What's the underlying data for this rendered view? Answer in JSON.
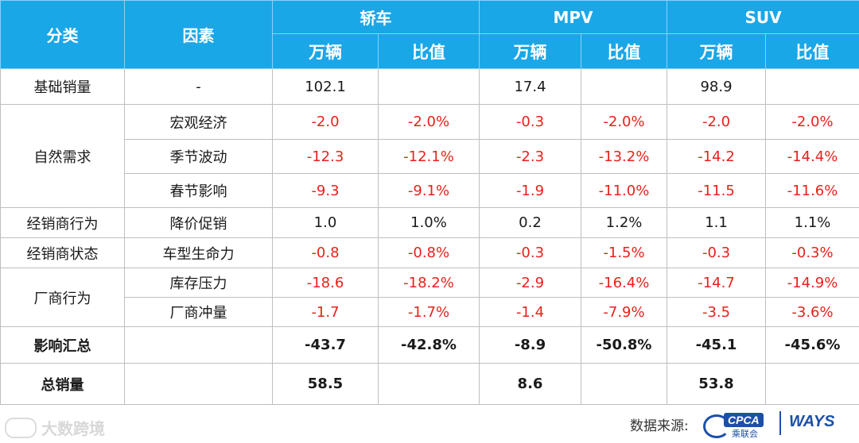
{
  "header": {
    "category": "分类",
    "factor": "因素",
    "groups": [
      "轿车",
      "MPV",
      "SUV"
    ],
    "units": [
      "万辆",
      "比值",
      "万辆",
      "比值",
      "万辆",
      "比值"
    ]
  },
  "rows": {
    "base": {
      "category": "基础销量",
      "factor": "-",
      "cells": [
        "102.1",
        "",
        "17.4",
        "",
        "98.9",
        ""
      ]
    },
    "natural": {
      "category": "自然需求",
      "items": [
        {
          "factor": "宏观经济",
          "cells": [
            "-2.0",
            "-2.0%",
            "-0.3",
            "-2.0%",
            "-2.0",
            "-2.0%"
          ]
        },
        {
          "factor": "季节波动",
          "cells": [
            "-12.3",
            "-12.1%",
            "-2.3",
            "-13.2%",
            "-14.2",
            "-14.4%"
          ]
        },
        {
          "factor": "春节影响",
          "cells": [
            "-9.3",
            "-9.1%",
            "-1.9",
            "-11.0%",
            "-11.5",
            "-11.6%"
          ]
        }
      ]
    },
    "dealer_behavior": {
      "category": "经销商行为",
      "factor": "降价促销",
      "cells": [
        "1.0",
        "1.0%",
        "0.2",
        "1.2%",
        "1.1",
        "1.1%"
      ]
    },
    "dealer_state": {
      "category": "经销商状态",
      "factor": "车型生命力",
      "cells": [
        "-0.8",
        "-0.8%",
        "-0.3",
        "-1.5%",
        "-0.3",
        "-0.3%"
      ]
    },
    "maker": {
      "category": "厂商行为",
      "items": [
        {
          "factor": "库存压力",
          "cells": [
            "-18.6",
            "-18.2%",
            "-2.9",
            "-16.4%",
            "-14.7",
            "-14.9%"
          ]
        },
        {
          "factor": "厂商冲量",
          "cells": [
            "-1.7",
            "-1.7%",
            "-1.4",
            "-7.9%",
            "-3.5",
            "-3.6%"
          ]
        }
      ]
    },
    "impact": {
      "category": "影响汇总",
      "factor": "",
      "cells": [
        "-43.7",
        "-42.8%",
        "-8.9",
        "-50.8%",
        "-45.1",
        "-45.6%"
      ]
    },
    "total": {
      "category": "总销量",
      "factor": "",
      "cells": [
        "58.5",
        "",
        "8.6",
        "",
        "53.8",
        ""
      ]
    }
  },
  "footer": {
    "watermark": "大数跨境",
    "source_label": "数据来源:",
    "cpca_logo": "CPCA",
    "cpca_sub": "乘联会",
    "ways_logo": "WAYS"
  },
  "colors": {
    "header_bg": "#1aa7e8",
    "negative": "#e8211b",
    "logo_blue": "#1c4fa8"
  }
}
